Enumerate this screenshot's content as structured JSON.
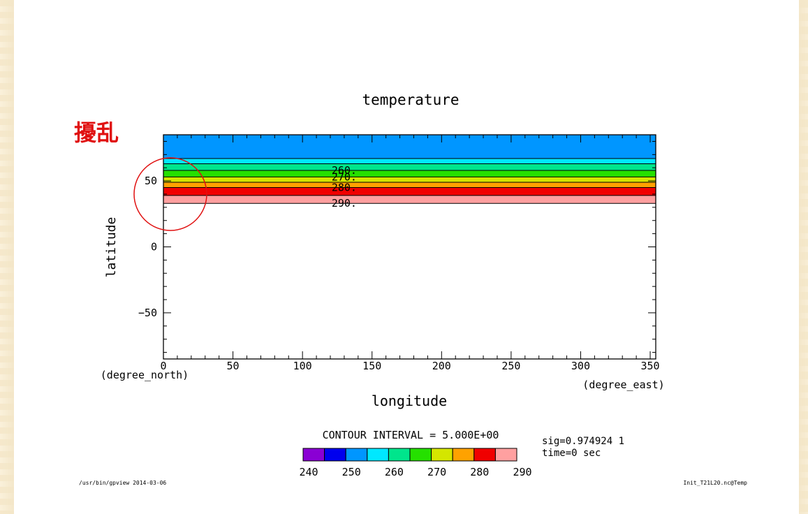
{
  "chart_data": {
    "type": "contour",
    "title": "temperature",
    "xlabel": "longitude",
    "ylabel": "latitude",
    "x_units": "(degree_east)",
    "y_units": "(degree_north)",
    "xlim": [
      0,
      354
    ],
    "ylim": [
      -85,
      85
    ],
    "x_ticks": [
      0,
      50,
      100,
      150,
      200,
      250,
      300,
      350
    ],
    "y_ticks": [
      50,
      0,
      -50
    ],
    "bands": [
      {
        "lower_lat": 67,
        "upper_lat": 85,
        "color": "#0096ff"
      },
      {
        "lower_lat": 63,
        "upper_lat": 67,
        "color": "#00e8ff"
      },
      {
        "lower_lat": 58,
        "upper_lat": 63,
        "color": "#00e58c"
      },
      {
        "lower_lat": 53,
        "upper_lat": 58,
        "color": "#25e000"
      },
      {
        "lower_lat": 49,
        "upper_lat": 53,
        "color": "#d4e600"
      },
      {
        "lower_lat": 45,
        "upper_lat": 49,
        "color": "#ffa200"
      },
      {
        "lower_lat": 39,
        "upper_lat": 45,
        "color": "#f00000"
      },
      {
        "lower_lat": 33,
        "upper_lat": 39,
        "color": "#ffa0a0"
      }
    ],
    "contour_lines": [
      67,
      63,
      58,
      53,
      49,
      45,
      39,
      33
    ],
    "contour_labels": [
      {
        "text": "260.",
        "lat": 58,
        "lon": 130
      },
      {
        "text": "270.",
        "lat": 53,
        "lon": 130
      },
      {
        "text": "280.",
        "lat": 45,
        "lon": 130
      },
      {
        "text": "290.",
        "lat": 33,
        "lon": 130
      }
    ],
    "contour_interval_text": "CONTOUR INTERVAL = 5.000E+00",
    "colorbar": {
      "colors": [
        "#8a00d4",
        "#0000ee",
        "#0096ff",
        "#00e8ff",
        "#00e58c",
        "#25e000",
        "#d4e600",
        "#ffa200",
        "#f00000",
        "#ffa0a0"
      ],
      "tick_labels": [
        "240",
        "250",
        "260",
        "270",
        "280",
        "290"
      ]
    },
    "info_lines": [
      "sig=0.974924 1",
      "time=0 sec"
    ],
    "footer_left": "/usr/bin/gpview  2014-03-06",
    "footer_right": "Init_T21L20.nc@Temp",
    "annotation": {
      "text": "擾乱",
      "color": "#e01010"
    }
  }
}
